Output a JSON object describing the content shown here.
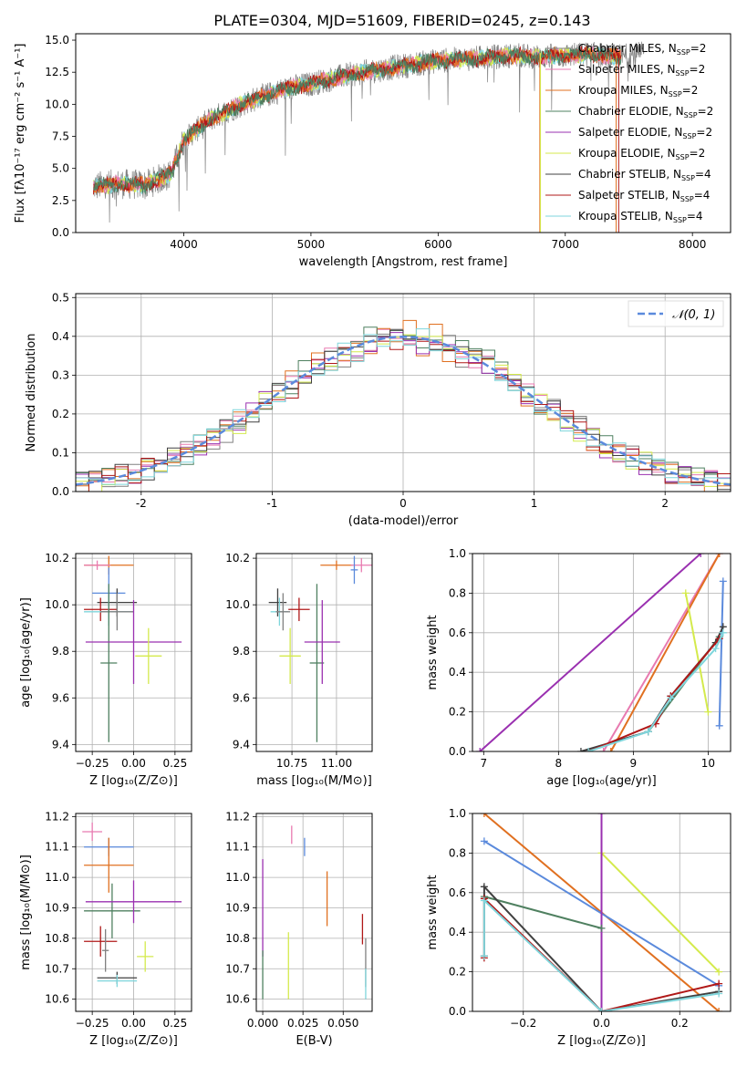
{
  "figure": {
    "title": "PLATE=0304, MJD=51609, FIBERID=0245, z=0.143"
  },
  "colors": {
    "Chabrier MILES": "#808080",
    "Salpeter MILES": "#e87ab0",
    "Kroupa MILES": "#e07020",
    "Chabrier ELODIE": "#4f8060",
    "Salpeter ELODIE": "#9a30b0",
    "Kroupa ELODIE": "#d4ea4c",
    "Chabrier STELIB": "#404040",
    "Salpeter STELIB": "#b01818",
    "Kroupa STELIB": "#7fd6dc",
    "extra_fit": "#5b8adc"
  },
  "chart_data": [
    {
      "id": "spectrum",
      "type": "line",
      "xlabel": "wavelength [Angstrom, rest frame]",
      "ylabel": "Flux [fλ10⁻¹⁷ erg cm⁻² s⁻¹ A⁻¹]",
      "xlim": [
        3150,
        8300
      ],
      "ylim": [
        0,
        15.5
      ],
      "xticks": [
        4000,
        5000,
        6000,
        7000,
        8000
      ],
      "yticks": [
        0.0,
        2.5,
        5.0,
        7.5,
        10.0,
        12.5,
        15.0
      ],
      "legend_position": "top-right",
      "legend": [
        {
          "name": "Chabrier MILES",
          "label": "Chabrier MILES, N",
          "sub": "SSP",
          "suffix": "=2"
        },
        {
          "name": "Salpeter MILES",
          "label": "Salpeter MILES, N",
          "sub": "SSP",
          "suffix": "=2"
        },
        {
          "name": "Kroupa MILES",
          "label": "Kroupa MILES, N",
          "sub": "SSP",
          "suffix": "=2"
        },
        {
          "name": "Chabrier ELODIE",
          "label": "Chabrier ELODIE, N",
          "sub": "SSP",
          "suffix": "=2"
        },
        {
          "name": "Salpeter ELODIE",
          "label": "Salpeter ELODIE, N",
          "sub": "SSP",
          "suffix": "=2"
        },
        {
          "name": "Kroupa ELODIE",
          "label": "Kroupa ELODIE, N",
          "sub": "SSP",
          "suffix": "=2"
        },
        {
          "name": "Chabrier STELIB",
          "label": "Chabrier STELIB, N",
          "sub": "SSP",
          "suffix": "=4"
        },
        {
          "name": "Salpeter STELIB",
          "label": "Salpeter STELIB, N",
          "sub": "SSP",
          "suffix": "=4"
        },
        {
          "name": "Kroupa STELIB",
          "label": "Kroupa STELIB, N",
          "sub": "SSP",
          "suffix": "=4"
        }
      ],
      "data_anchors": {
        "x": [
          3300,
          3500,
          3700,
          3900,
          4000,
          4200,
          4500,
          4800,
          5000,
          5300,
          5600,
          6000,
          6300,
          6600,
          6800,
          7000,
          7200,
          7400,
          7600
        ],
        "y": [
          3.6,
          3.8,
          3.7,
          4.6,
          7.2,
          8.8,
          10.2,
          11.2,
          11.6,
          12.3,
          12.8,
          13.4,
          13.6,
          13.8,
          13.7,
          13.8,
          13.9,
          13.7,
          13.9
        ]
      },
      "model_x_range": [
        3290,
        7440
      ]
    },
    {
      "id": "residuals",
      "type": "line",
      "xlabel": "(data-model)/error",
      "ylabel": "Normed distribution",
      "xlim": [
        -2.5,
        2.5
      ],
      "ylim": [
        0,
        0.51
      ],
      "xticks": [
        -2,
        -1,
        0,
        1,
        2
      ],
      "yticks": [
        0.0,
        0.1,
        0.2,
        0.3,
        0.4,
        0.5
      ],
      "grid": true,
      "legend_position": "top-right",
      "gaussian_label": "𝒩(0, 1)",
      "bin_width": 0.1,
      "x_range": [
        -2.5,
        2.5
      ]
    },
    {
      "id": "age_vs_Z",
      "type": "scatter",
      "xlabel": "Z [log₁₀(Z/Z⊙)]",
      "ylabel": "age  [log₁₀(age/yr)]",
      "xlim": [
        -0.35,
        0.35
      ],
      "ylim": [
        9.37,
        10.22
      ],
      "xticks": [
        -0.25,
        0.0,
        0.25
      ],
      "xticklabels": [
        "−0.25",
        "0.00",
        "0.25"
      ],
      "yticks": [
        9.4,
        9.6,
        9.8,
        10.0,
        10.2
      ],
      "grid": true,
      "points": [
        {
          "x": -0.15,
          "y": 10.17,
          "xerr": 0.15,
          "yerr": 0.04,
          "color": "#e07020"
        },
        {
          "x": -0.22,
          "y": 10.17,
          "xerr": 0.08,
          "yerr": 0.02,
          "color": "#e87ab0"
        },
        {
          "x": -0.15,
          "y": 10.05,
          "xerr": 0.1,
          "yerr": 0.11,
          "color": "#5b8adc"
        },
        {
          "x": -0.1,
          "y": 10.01,
          "xerr": 0.12,
          "yerr": 0.06,
          "color": "#404040"
        },
        {
          "x": -0.2,
          "y": 9.98,
          "xerr": 0.1,
          "yerr": 0.05,
          "color": "#b01818"
        },
        {
          "x": -0.15,
          "y": 9.97,
          "xerr": 0.15,
          "yerr": 0.06,
          "color": "#7fd6dc"
        },
        {
          "x": -0.1,
          "y": 9.97,
          "xerr": 0.1,
          "yerr": 0.08,
          "color": "#808080"
        },
        {
          "x": -0.15,
          "y": 9.75,
          "xerr": 0.05,
          "yerr": 0.34,
          "color": "#4f8060"
        },
        {
          "x": 0.0,
          "y": 9.84,
          "xerr": 0.29,
          "yerr": 0.18,
          "color": "#9a30b0"
        },
        {
          "x": 0.09,
          "y": 9.78,
          "xerr": 0.08,
          "yerr": 0.12,
          "color": "#d4ea4c"
        }
      ]
    },
    {
      "id": "age_vs_mass",
      "type": "scatter",
      "xlabel": "mass [log₁₀(M/M⊙)]",
      "ylabel": "",
      "xlim": [
        10.55,
        11.2
      ],
      "ylim": [
        9.37,
        10.22
      ],
      "xticks": [
        10.75,
        11.0
      ],
      "xticklabels": [
        "10.75",
        "11.00"
      ],
      "yticks": [
        9.4,
        9.6,
        9.8,
        10.0,
        10.2
      ],
      "grid": true,
      "points": [
        {
          "x": 11.0,
          "y": 10.17,
          "xerr": 0.09,
          "yerr": 0.02,
          "color": "#e07020"
        },
        {
          "x": 11.14,
          "y": 10.17,
          "xerr": 0.06,
          "yerr": 0.03,
          "color": "#e87ab0"
        },
        {
          "x": 11.1,
          "y": 10.15,
          "xerr": 0.02,
          "yerr": 0.06,
          "color": "#5b8adc"
        },
        {
          "x": 10.67,
          "y": 10.01,
          "xerr": 0.05,
          "yerr": 0.06,
          "color": "#404040"
        },
        {
          "x": 10.79,
          "y": 9.98,
          "xerr": 0.06,
          "yerr": 0.05,
          "color": "#b01818"
        },
        {
          "x": 10.68,
          "y": 9.97,
          "xerr": 0.05,
          "yerr": 0.06,
          "color": "#7fd6dc"
        },
        {
          "x": 10.7,
          "y": 9.97,
          "xerr": 0.04,
          "yerr": 0.08,
          "color": "#808080"
        },
        {
          "x": 10.89,
          "y": 9.75,
          "xerr": 0.04,
          "yerr": 0.34,
          "color": "#4f8060"
        },
        {
          "x": 10.92,
          "y": 9.84,
          "xerr": 0.1,
          "yerr": 0.18,
          "color": "#9a30b0"
        },
        {
          "x": 10.74,
          "y": 9.78,
          "xerr": 0.06,
          "yerr": 0.12,
          "color": "#d4ea4c"
        }
      ]
    },
    {
      "id": "mass_weight_vs_age",
      "type": "line",
      "xlabel": "age  [log₁₀(age/yr)]",
      "ylabel": "mass weight",
      "xlim": [
        6.85,
        10.3
      ],
      "ylim": [
        0,
        1
      ],
      "xticks": [
        7,
        8,
        9,
        10
      ],
      "yticks": [
        0.0,
        0.2,
        0.4,
        0.6,
        0.8,
        1.0
      ],
      "grid": true,
      "series": [
        {
          "color": "#9a30b0",
          "x": [
            6.95,
            9.9
          ],
          "y": [
            0.0,
            1.0
          ]
        },
        {
          "color": "#e87ab0",
          "x": [
            8.6,
            10.15
          ],
          "y": [
            0.0,
            1.0
          ]
        },
        {
          "color": "#e07020",
          "x": [
            8.7,
            10.15
          ],
          "y": [
            0.0,
            1.0
          ]
        },
        {
          "color": "#d4ea4c",
          "x": [
            9.7,
            10.0
          ],
          "y": [
            0.8,
            0.2
          ]
        },
        {
          "color": "#5b8adc",
          "x": [
            10.15,
            10.2
          ],
          "y": [
            0.13,
            0.86
          ]
        },
        {
          "color": "#4f8060",
          "x": [
            9.2,
            10.15
          ],
          "y": [
            0.1,
            0.58
          ]
        },
        {
          "color": "#404040",
          "x": [
            8.3,
            9.2,
            9.5,
            10.1,
            10.2
          ],
          "y": [
            0.0,
            0.1,
            0.28,
            0.55,
            0.63
          ]
        },
        {
          "color": "#b01818",
          "x": [
            8.4,
            9.3,
            9.5,
            10.15
          ],
          "y": [
            0.0,
            0.14,
            0.28,
            0.57
          ]
        },
        {
          "color": "#7fd6dc",
          "x": [
            8.4,
            9.2,
            9.5,
            10.1,
            10.2
          ],
          "y": [
            0.0,
            0.1,
            0.27,
            0.52,
            0.6
          ]
        }
      ]
    },
    {
      "id": "mass_vs_Z",
      "type": "scatter",
      "xlabel": "Z [log₁₀(Z/Z⊙)]",
      "ylabel": "mass [log₁₀(M/M⊙)]",
      "xlim": [
        -0.35,
        0.35
      ],
      "ylim": [
        10.56,
        11.21
      ],
      "xticks": [
        -0.25,
        0.0,
        0.25
      ],
      "xticklabels": [
        "−0.25",
        "0.00",
        "0.25"
      ],
      "yticks": [
        10.6,
        10.7,
        10.8,
        10.9,
        11.0,
        11.1,
        11.2
      ],
      "grid": true,
      "points": [
        {
          "x": -0.25,
          "y": 11.15,
          "xerr": 0.06,
          "yerr": 0.03,
          "color": "#e87ab0"
        },
        {
          "x": -0.15,
          "y": 11.1,
          "xerr": 0.15,
          "yerr": 0.03,
          "color": "#5b8adc"
        },
        {
          "x": -0.15,
          "y": 11.04,
          "xerr": 0.15,
          "yerr": 0.09,
          "color": "#e07020"
        },
        {
          "x": -0.13,
          "y": 10.89,
          "xerr": 0.17,
          "yerr": 0.09,
          "color": "#4f8060"
        },
        {
          "x": 0.0,
          "y": 10.92,
          "xerr": 0.29,
          "yerr": 0.07,
          "color": "#9a30b0"
        },
        {
          "x": -0.2,
          "y": 10.79,
          "xerr": 0.1,
          "yerr": 0.05,
          "color": "#b01818"
        },
        {
          "x": -0.17,
          "y": 10.76,
          "xerr": 0.02,
          "yerr": 0.07,
          "color": "#808080"
        },
        {
          "x": 0.07,
          "y": 10.74,
          "xerr": 0.05,
          "yerr": 0.05,
          "color": "#d4ea4c"
        },
        {
          "x": -0.1,
          "y": 10.67,
          "xerr": 0.12,
          "yerr": 0.02,
          "color": "#404040"
        },
        {
          "x": -0.1,
          "y": 10.66,
          "xerr": 0.12,
          "yerr": 0.02,
          "color": "#7fd6dc"
        }
      ]
    },
    {
      "id": "mass_vs_ebv",
      "type": "scatter",
      "xlabel": "E(B-V)",
      "ylabel": "",
      "xlim": [
        -0.004,
        0.068
      ],
      "ylim": [
        10.56,
        11.21
      ],
      "xticks": [
        0.0,
        0.025,
        0.05
      ],
      "xticklabels": [
        "0.000",
        "0.025",
        "0.050"
      ],
      "yticks": [
        10.6,
        10.7,
        10.8,
        10.9,
        11.0,
        11.1,
        11.2
      ],
      "grid": true,
      "points": [
        {
          "x": 0.018,
          "y": 11.14,
          "xerr": 0.0,
          "yerr": 0.03,
          "color": "#e87ab0"
        },
        {
          "x": 0.026,
          "y": 11.1,
          "xerr": 0.0,
          "yerr": 0.03,
          "color": "#5b8adc"
        },
        {
          "x": 0.0,
          "y": 10.9,
          "xerr": 0.0,
          "yerr": 0.16,
          "color": "#9a30b0"
        },
        {
          "x": 0.04,
          "y": 10.93,
          "xerr": 0.0,
          "yerr": 0.09,
          "color": "#e07020"
        },
        {
          "x": 0.062,
          "y": 10.83,
          "xerr": 0.0,
          "yerr": 0.05,
          "color": "#b01818"
        },
        {
          "x": 0.064,
          "y": 10.72,
          "xerr": 0.0,
          "yerr": 0.08,
          "color": "#808080"
        },
        {
          "x": 0.016,
          "y": 10.71,
          "xerr": 0.0,
          "yerr": 0.11,
          "color": "#d4ea4c"
        },
        {
          "x": 0.064,
          "y": 10.65,
          "xerr": 0.0,
          "yerr": 0.05,
          "color": "#7fd6dc"
        },
        {
          "x": 0.0,
          "y": 10.68,
          "xerr": 0.0,
          "yerr": 0.08,
          "color": "#4f8060"
        }
      ]
    },
    {
      "id": "mass_weight_vs_Z",
      "type": "line",
      "xlabel": "Z [log₁₀(Z/Z⊙)]",
      "ylabel": "mass weight",
      "xlim": [
        -0.33,
        0.33
      ],
      "ylim": [
        0,
        1
      ],
      "xticks": [
        -0.2,
        0.0,
        0.2
      ],
      "xticklabels": [
        "−0.2",
        "0.0",
        "0.2"
      ],
      "yticks": [
        0.0,
        0.2,
        0.4,
        0.6,
        0.8,
        1.0
      ],
      "grid": true,
      "series": [
        {
          "color": "#e07020",
          "x": [
            -0.3,
            0.3
          ],
          "y": [
            1.0,
            0.0
          ]
        },
        {
          "color": "#5b8adc",
          "x": [
            -0.3,
            0.3
          ],
          "y": [
            0.86,
            0.13
          ]
        },
        {
          "color": "#d4ea4c",
          "x": [
            0.0,
            0.3
          ],
          "y": [
            0.8,
            0.2
          ]
        },
        {
          "color": "#9a30b0",
          "x": [
            0.0,
            0.0
          ],
          "y": [
            1.0,
            0.0
          ]
        },
        {
          "color": "#4f8060",
          "x": [
            -0.3,
            0.0
          ],
          "y": [
            0.58,
            0.42
          ]
        },
        {
          "color": "#404040",
          "x": [
            -0.3,
            -0.3,
            0.0,
            0.3
          ],
          "y": [
            0.28,
            0.63,
            0.0,
            0.1
          ]
        },
        {
          "color": "#b01818",
          "x": [
            -0.3,
            -0.3,
            0.0,
            0.3
          ],
          "y": [
            0.27,
            0.57,
            0.0,
            0.14
          ]
        },
        {
          "color": "#7fd6dc",
          "x": [
            -0.3,
            -0.3,
            0.0,
            0.3
          ],
          "y": [
            0.28,
            0.56,
            0.0,
            0.09
          ]
        }
      ]
    }
  ]
}
